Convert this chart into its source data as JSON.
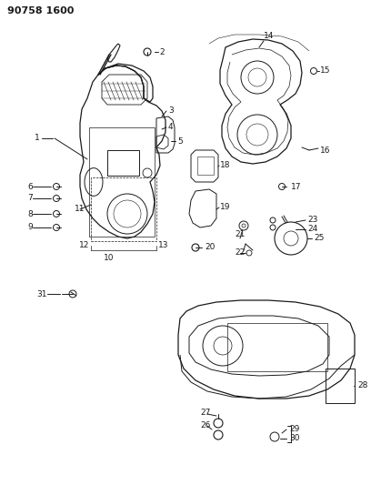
{
  "title": "90758 1600",
  "bg": "#ffffff",
  "tc": "#1a1a1a",
  "figsize": [
    4.08,
    5.33
  ],
  "dpi": 100,
  "lw": 0.7,
  "fs": 6.5
}
